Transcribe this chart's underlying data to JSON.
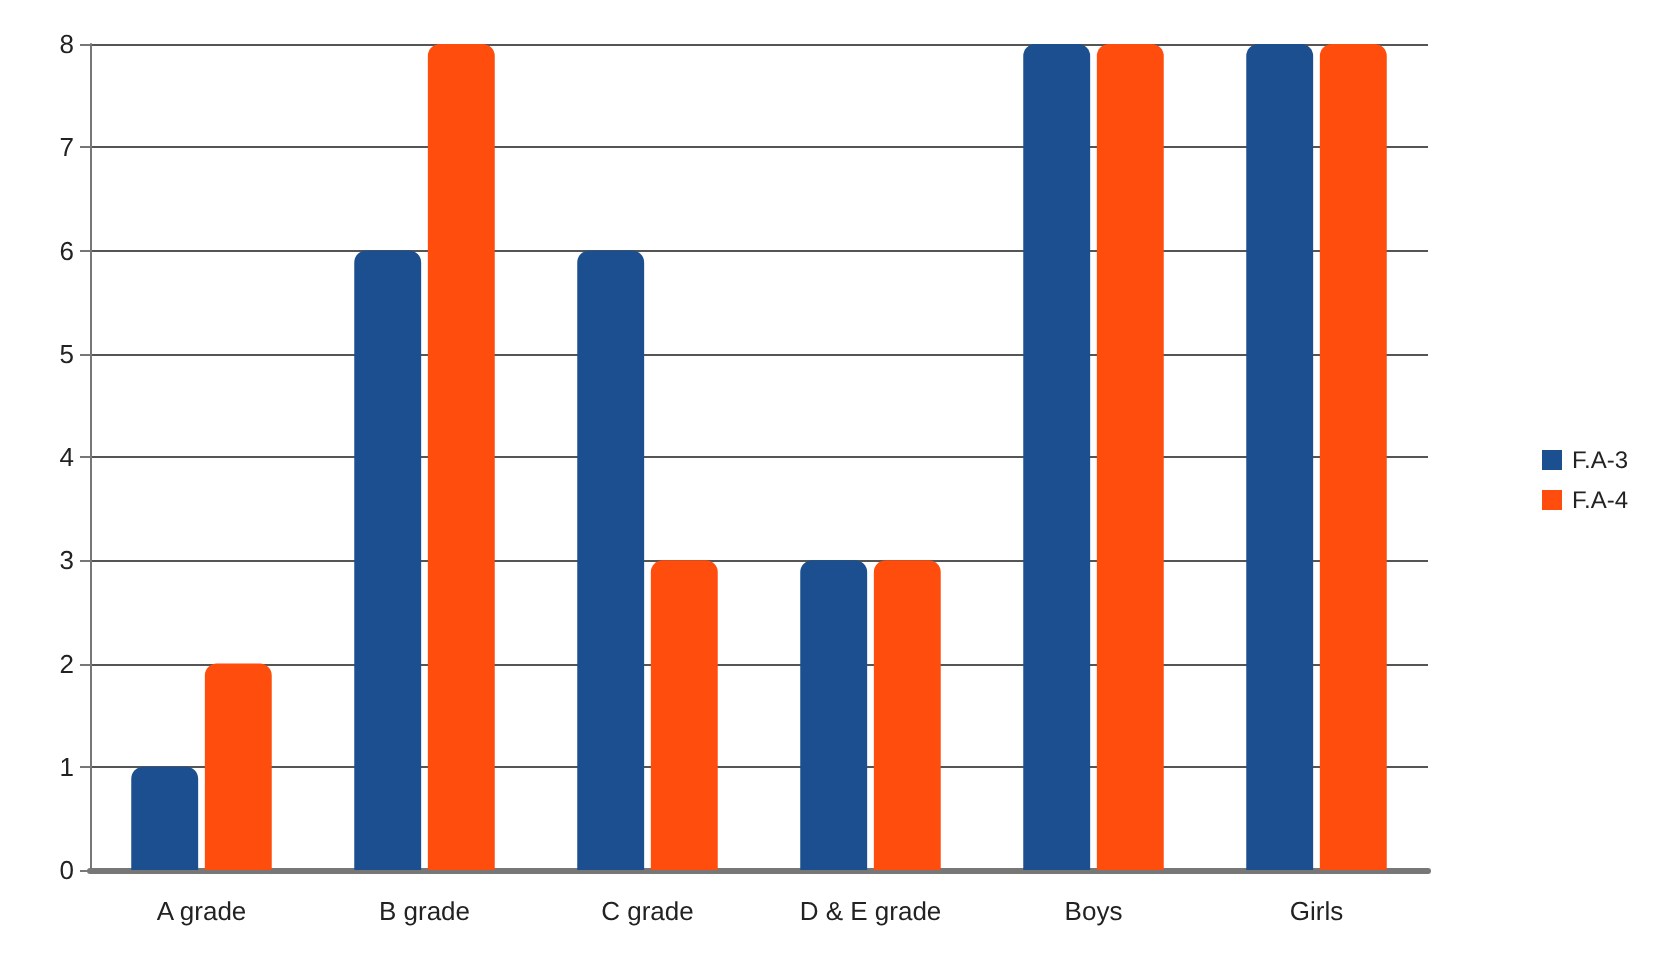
{
  "chart_data": {
    "type": "bar",
    "categories": [
      "A grade",
      "B grade",
      "C grade",
      "D & E grade",
      "Boys",
      "Girls"
    ],
    "series": [
      {
        "name": "F.A-3",
        "color": "#1c4f8f",
        "values": [
          1,
          6,
          6,
          3,
          8,
          8
        ]
      },
      {
        "name": "F.A-4",
        "color": "#ff4d0d",
        "values": [
          2,
          8,
          3,
          3,
          8,
          8
        ]
      }
    ],
    "ylim": [
      0,
      8
    ],
    "yticks": [
      0,
      1,
      2,
      3,
      4,
      5,
      6,
      7,
      8
    ],
    "grid": "y",
    "legend": "right"
  }
}
